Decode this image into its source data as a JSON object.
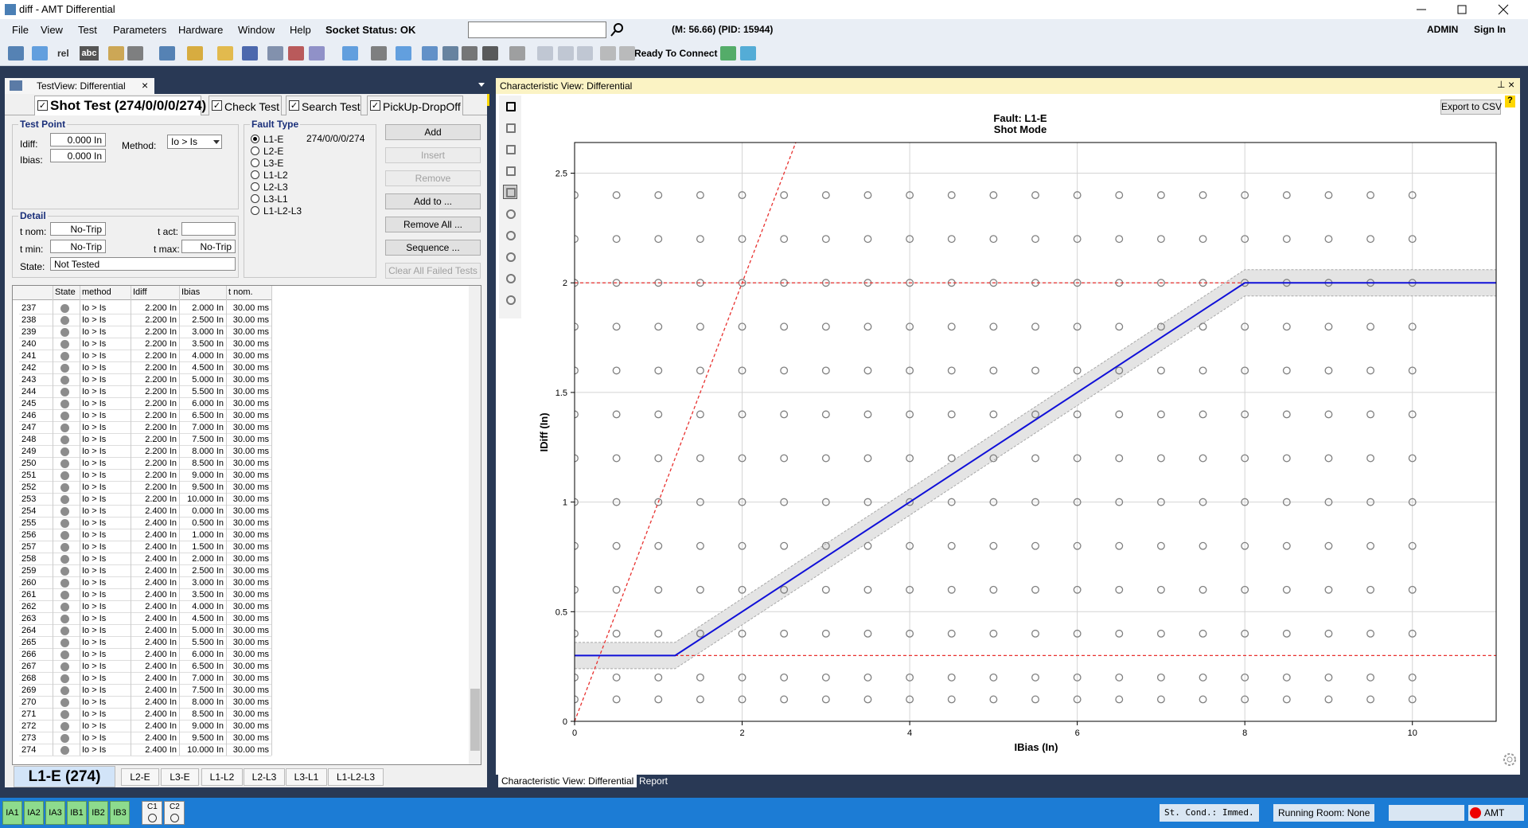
{
  "window": {
    "title": "diff - AMT Differential"
  },
  "menu": [
    "File",
    "View",
    "Test",
    "Parameters",
    "Hardware",
    "Window",
    "Help",
    "Socket Status: OK"
  ],
  "header_info": "(M: 56.66) (PID: 15944)",
  "user": [
    "ADMIN",
    "Sign In"
  ],
  "toolbar": {
    "labels": [
      "rel",
      "abc"
    ],
    "status": "Ready To Connect"
  },
  "test_view": {
    "tab": "TestView: Differential",
    "mode_tabs": [
      "Shot Test (274/0/0/0/274)",
      "Check Test",
      "Search Test",
      "PickUp-DropOff"
    ],
    "test_point": {
      "title": "Test Point",
      "idiff_label": "Idiff:",
      "idiff": "0.000 In",
      "ibias_label": "Ibias:",
      "ibias": "0.000 In",
      "method_label": "Method:",
      "method": "Io > Is"
    },
    "fault_type": {
      "title": "Fault Type",
      "options": [
        "L1-E",
        "L2-E",
        "L3-E",
        "L1-L2",
        "L2-L3",
        "L3-L1",
        "L1-L2-L3"
      ],
      "selected": 0,
      "count": "274/0/0/0/274"
    },
    "buttons": [
      {
        "label": "Add",
        "enabled": true
      },
      {
        "label": "Insert",
        "enabled": false
      },
      {
        "label": "Remove",
        "enabled": false
      },
      {
        "label": "Add to ...",
        "enabled": true
      },
      {
        "label": "Remove All ...",
        "enabled": true
      },
      {
        "label": "Sequence ...",
        "enabled": true
      },
      {
        "label": "Clear All Failed Tests",
        "enabled": false
      }
    ],
    "detail": {
      "title": "Detail",
      "t_nom_label": "t nom:",
      "t_nom": "No-Trip",
      "t_act_label": "t act:",
      "t_min_label": "t min:",
      "t_min": "No-Trip",
      "t_max_label": "t max:",
      "t_max": "No-Trip",
      "state_label": "State:",
      "state": "Not Tested"
    },
    "table": {
      "columns": [
        "State",
        "method",
        "Idiff",
        "Ibias",
        "t nom."
      ],
      "rows": [
        [
          "237",
          "Io > Is",
          "2.200 In",
          "2.000 In",
          "30.00 ms"
        ],
        [
          "238",
          "Io > Is",
          "2.200 In",
          "2.500 In",
          "30.00 ms"
        ],
        [
          "239",
          "Io > Is",
          "2.200 In",
          "3.000 In",
          "30.00 ms"
        ],
        [
          "240",
          "Io > Is",
          "2.200 In",
          "3.500 In",
          "30.00 ms"
        ],
        [
          "241",
          "Io > Is",
          "2.200 In",
          "4.000 In",
          "30.00 ms"
        ],
        [
          "242",
          "Io > Is",
          "2.200 In",
          "4.500 In",
          "30.00 ms"
        ],
        [
          "243",
          "Io > Is",
          "2.200 In",
          "5.000 In",
          "30.00 ms"
        ],
        [
          "244",
          "Io > Is",
          "2.200 In",
          "5.500 In",
          "30.00 ms"
        ],
        [
          "245",
          "Io > Is",
          "2.200 In",
          "6.000 In",
          "30.00 ms"
        ],
        [
          "246",
          "Io > Is",
          "2.200 In",
          "6.500 In",
          "30.00 ms"
        ],
        [
          "247",
          "Io > Is",
          "2.200 In",
          "7.000 In",
          "30.00 ms"
        ],
        [
          "248",
          "Io > Is",
          "2.200 In",
          "7.500 In",
          "30.00 ms"
        ],
        [
          "249",
          "Io > Is",
          "2.200 In",
          "8.000 In",
          "30.00 ms"
        ],
        [
          "250",
          "Io > Is",
          "2.200 In",
          "8.500 In",
          "30.00 ms"
        ],
        [
          "251",
          "Io > Is",
          "2.200 In",
          "9.000 In",
          "30.00 ms"
        ],
        [
          "252",
          "Io > Is",
          "2.200 In",
          "9.500 In",
          "30.00 ms"
        ],
        [
          "253",
          "Io > Is",
          "2.200 In",
          "10.000 In",
          "30.00 ms"
        ],
        [
          "254",
          "Io > Is",
          "2.400 In",
          "0.000 In",
          "30.00 ms"
        ],
        [
          "255",
          "Io > Is",
          "2.400 In",
          "0.500 In",
          "30.00 ms"
        ],
        [
          "256",
          "Io > Is",
          "2.400 In",
          "1.000 In",
          "30.00 ms"
        ],
        [
          "257",
          "Io > Is",
          "2.400 In",
          "1.500 In",
          "30.00 ms"
        ],
        [
          "258",
          "Io > Is",
          "2.400 In",
          "2.000 In",
          "30.00 ms"
        ],
        [
          "259",
          "Io > Is",
          "2.400 In",
          "2.500 In",
          "30.00 ms"
        ],
        [
          "260",
          "Io > Is",
          "2.400 In",
          "3.000 In",
          "30.00 ms"
        ],
        [
          "261",
          "Io > Is",
          "2.400 In",
          "3.500 In",
          "30.00 ms"
        ],
        [
          "262",
          "Io > Is",
          "2.400 In",
          "4.000 In",
          "30.00 ms"
        ],
        [
          "263",
          "Io > Is",
          "2.400 In",
          "4.500 In",
          "30.00 ms"
        ],
        [
          "264",
          "Io > Is",
          "2.400 In",
          "5.000 In",
          "30.00 ms"
        ],
        [
          "265",
          "Io > Is",
          "2.400 In",
          "5.500 In",
          "30.00 ms"
        ],
        [
          "266",
          "Io > Is",
          "2.400 In",
          "6.000 In",
          "30.00 ms"
        ],
        [
          "267",
          "Io > Is",
          "2.400 In",
          "6.500 In",
          "30.00 ms"
        ],
        [
          "268",
          "Io > Is",
          "2.400 In",
          "7.000 In",
          "30.00 ms"
        ],
        [
          "269",
          "Io > Is",
          "2.400 In",
          "7.500 In",
          "30.00 ms"
        ],
        [
          "270",
          "Io > Is",
          "2.400 In",
          "8.000 In",
          "30.00 ms"
        ],
        [
          "271",
          "Io > Is",
          "2.400 In",
          "8.500 In",
          "30.00 ms"
        ],
        [
          "272",
          "Io > Is",
          "2.400 In",
          "9.000 In",
          "30.00 ms"
        ],
        [
          "273",
          "Io > Is",
          "2.400 In",
          "9.500 In",
          "30.00 ms"
        ],
        [
          "274",
          "Io > Is",
          "2.400 In",
          "10.000 In",
          "30.00 ms"
        ]
      ]
    },
    "fault_tabs": [
      "L1-E (274)",
      "L2-E",
      "L3-E",
      "L1-L2",
      "L2-L3",
      "L3-L1",
      "L1-L2-L3"
    ]
  },
  "char_view": {
    "title": "Characteristic View: Differential",
    "export": "Export to CSV",
    "tabs": [
      "Characteristic View: Differential",
      "Report"
    ]
  },
  "status_bar": {
    "channels": [
      "IA1",
      "IA2",
      "IA3",
      "IB1",
      "IB2",
      "IB3"
    ],
    "contacts": [
      "C1",
      "C2"
    ],
    "st_cond": "St. Cond.: Immed.",
    "room": "Running Room: None",
    "device": "AMT"
  },
  "chart_data": {
    "type": "scatter",
    "title": "Fault: L1-E",
    "subtitle": "Shot Mode",
    "x_label": "IBias (In)",
    "y_label": "IDiff (In)",
    "xlim": [
      0,
      11
    ],
    "ylim": [
      0,
      2.64
    ],
    "xticks": [
      0,
      2,
      4,
      6,
      8,
      10
    ],
    "yticks": [
      0,
      0.5,
      1,
      1.5,
      2,
      2.5
    ],
    "grid": true,
    "x": [
      0,
      0.5,
      1,
      1.5,
      2,
      2.5,
      3,
      3.5,
      4,
      4.5,
      5,
      5.5,
      6,
      6.5,
      7,
      7.5,
      8,
      8.5,
      9,
      9.5,
      10
    ],
    "series": [
      {
        "type": "band",
        "color": "#e4e4e4",
        "x": [
          0,
          1.2,
          8,
          11
        ],
        "values": [
          0.36,
          0.36,
          2.06,
          2.06
        ],
        "lower": [
          0.24,
          0.24,
          1.94,
          1.94
        ]
      },
      {
        "type": "scatter",
        "color": "#808080",
        "values": [
          0.1,
          0.1,
          0.1,
          0.1,
          0.1,
          0.1,
          0.1,
          0.1,
          0.1,
          0.1,
          0.1,
          0.1,
          0.1,
          0.1,
          0.1,
          0.1,
          0.1,
          0.1,
          0.1,
          0.1,
          0.1
        ]
      },
      {
        "type": "scatter",
        "color": "#808080",
        "values": [
          0.2,
          0.2,
          0.2,
          0.2,
          0.2,
          0.2,
          0.2,
          0.2,
          0.2,
          0.2,
          0.2,
          0.2,
          0.2,
          0.2,
          0.2,
          0.2,
          0.2,
          0.2,
          0.2,
          0.2,
          0.2
        ]
      },
      {
        "type": "scatter",
        "color": "#808080",
        "values": [
          0.4,
          0.4,
          0.4,
          0.4,
          0.4,
          0.4,
          0.4,
          0.4,
          0.4,
          0.4,
          0.4,
          0.4,
          0.4,
          0.4,
          0.4,
          0.4,
          0.4,
          0.4,
          0.4,
          0.4,
          0.4
        ]
      },
      {
        "type": "scatter",
        "color": "#808080",
        "values": [
          0.6,
          0.6,
          0.6,
          0.6,
          0.6,
          0.6,
          0.6,
          0.6,
          0.6,
          0.6,
          0.6,
          0.6,
          0.6,
          0.6,
          0.6,
          0.6,
          0.6,
          0.6,
          0.6,
          0.6,
          0.6
        ]
      },
      {
        "type": "scatter",
        "color": "#808080",
        "values": [
          0.8,
          0.8,
          0.8,
          0.8,
          0.8,
          0.8,
          0.8,
          0.8,
          0.8,
          0.8,
          0.8,
          0.8,
          0.8,
          0.8,
          0.8,
          0.8,
          0.8,
          0.8,
          0.8,
          0.8,
          0.8
        ]
      },
      {
        "type": "scatter",
        "color": "#808080",
        "values": [
          1,
          1,
          1,
          1,
          1,
          1,
          1,
          1,
          1,
          1,
          1,
          1,
          1,
          1,
          1,
          1,
          1,
          1,
          1,
          1,
          1
        ]
      },
      {
        "type": "scatter",
        "color": "#808080",
        "values": [
          1.2,
          1.2,
          1.2,
          1.2,
          1.2,
          1.2,
          1.2,
          1.2,
          1.2,
          1.2,
          1.2,
          1.2,
          1.2,
          1.2,
          1.2,
          1.2,
          1.2,
          1.2,
          1.2,
          1.2,
          1.2
        ]
      },
      {
        "type": "scatter",
        "color": "#808080",
        "values": [
          1.4,
          1.4,
          1.4,
          1.4,
          1.4,
          1.4,
          1.4,
          1.4,
          1.4,
          1.4,
          1.4,
          1.4,
          1.4,
          1.4,
          1.4,
          1.4,
          1.4,
          1.4,
          1.4,
          1.4,
          1.4
        ]
      },
      {
        "type": "scatter",
        "color": "#808080",
        "values": [
          1.6,
          1.6,
          1.6,
          1.6,
          1.6,
          1.6,
          1.6,
          1.6,
          1.6,
          1.6,
          1.6,
          1.6,
          1.6,
          1.6,
          1.6,
          1.6,
          1.6,
          1.6,
          1.6,
          1.6,
          1.6
        ]
      },
      {
        "type": "scatter",
        "color": "#808080",
        "values": [
          1.8,
          1.8,
          1.8,
          1.8,
          1.8,
          1.8,
          1.8,
          1.8,
          1.8,
          1.8,
          1.8,
          1.8,
          1.8,
          1.8,
          1.8,
          1.8,
          1.8,
          1.8,
          1.8,
          1.8,
          1.8
        ]
      },
      {
        "type": "scatter",
        "color": "#808080",
        "values": [
          2,
          2,
          2,
          2,
          2,
          2,
          2,
          2,
          2,
          2,
          2,
          2,
          2,
          2,
          2,
          2,
          2,
          2,
          2,
          2,
          2
        ]
      },
      {
        "type": "scatter",
        "color": "#808080",
        "values": [
          2.2,
          2.2,
          2.2,
          2.2,
          2.2,
          2.2,
          2.2,
          2.2,
          2.2,
          2.2,
          2.2,
          2.2,
          2.2,
          2.2,
          2.2,
          2.2,
          2.2,
          2.2,
          2.2,
          2.2,
          2.2
        ]
      },
      {
        "type": "scatter",
        "color": "#808080",
        "values": [
          2.4,
          2.4,
          2.4,
          2.4,
          2.4,
          2.4,
          2.4,
          2.4,
          2.4,
          2.4,
          2.4,
          2.4,
          2.4,
          2.4,
          2.4,
          2.4,
          2.4,
          2.4,
          2.4,
          2.4,
          2.4
        ]
      },
      {
        "type": "dashed",
        "color": "#e8312f",
        "x": [
          0,
          11
        ],
        "values": [
          2,
          2
        ]
      },
      {
        "type": "dashed",
        "color": "#e8312f",
        "x": [
          0,
          11
        ],
        "values": [
          0.3,
          0.3
        ]
      },
      {
        "type": "dashed",
        "color": "#e8312f",
        "x": [
          0,
          2.64
        ],
        "values": [
          0,
          2.64
        ]
      },
      {
        "type": "line",
        "color": "#1010d8",
        "x": [
          0,
          1.2,
          8,
          11
        ],
        "values": [
          0.3,
          0.3,
          2,
          2
        ]
      }
    ]
  }
}
